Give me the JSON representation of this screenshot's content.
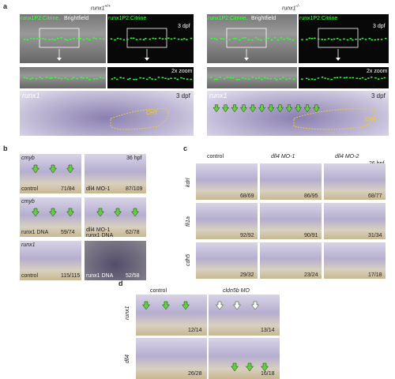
{
  "panel_a": {
    "label": "a",
    "left_header": {
      "gene": "runx1",
      "genotype": "+/+"
    },
    "right_header": {
      "gene": "runx1",
      "genotype": "-/-"
    },
    "left": {
      "merge_label": "runx1P2:Citrine,",
      "bf_label": "Brightfield",
      "citrine_label": "runx1P2:Citrine",
      "stage": "3 dpf",
      "zoom": "2x zoom",
      "ish_gene": "runx1",
      "ish_stage": "3 dpf",
      "cht": "CHT"
    },
    "right": {
      "merge_label": "runx1P2:Citrine,",
      "bf_label": "Brightfield",
      "citrine_label": "runx1P2:Citrine",
      "stage": "3 dpf",
      "zoom": "2x zoom",
      "ish_gene": "runx1",
      "ish_stage": "3 dpf",
      "cht": "CHT"
    }
  },
  "panel_b": {
    "label": "b",
    "stage": "36 hpf",
    "rows": [
      {
        "gene": "cmyb",
        "left": {
          "condition": "control",
          "count": "71/84"
        },
        "right": {
          "condition": "dll4 MO-1",
          "count": "87/109"
        }
      },
      {
        "gene": "cmyb",
        "left": {
          "condition": "runx1 DNA",
          "count": "59/74"
        },
        "right": {
          "condition": "dll4 MO-1",
          "condition2": "runx1 DNA",
          "count": "62/78"
        }
      },
      {
        "gene": "runx1",
        "left": {
          "condition": "control",
          "count": "115/115"
        },
        "right": {
          "condition": "runx1 DNA",
          "count": "52/58"
        }
      }
    ]
  },
  "panel_c": {
    "label": "c",
    "stage": "26 hpf",
    "columns": [
      "control",
      "dll4 MO-1",
      "dll4 MO-2"
    ],
    "rows": [
      {
        "gene": "kdrl",
        "counts": [
          "68/69",
          "86/95",
          "68/77"
        ]
      },
      {
        "gene": "fli1a",
        "counts": [
          "92/92",
          "90/91",
          "31/34"
        ]
      },
      {
        "gene": "cdh5",
        "counts": [
          "29/32",
          "23/24",
          "17/18"
        ]
      }
    ]
  },
  "panel_d": {
    "label": "d",
    "columns": [
      "control",
      "cldn5b MO"
    ],
    "rows": [
      {
        "gene": "runx1",
        "counts": [
          "12/14",
          "13/14"
        ]
      },
      {
        "gene": "dll4",
        "counts": [
          "26/28",
          "16/18"
        ]
      }
    ]
  }
}
